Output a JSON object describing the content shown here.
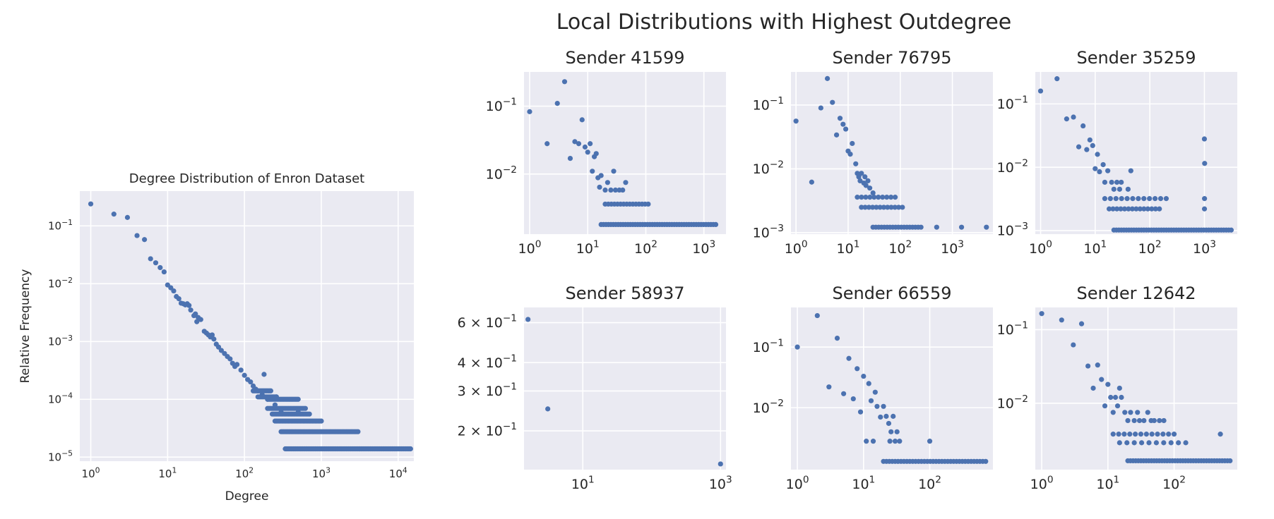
{
  "figure": {
    "suptitle": "Local Distributions with Highest Outdegree",
    "background": "#ffffff",
    "axes_facecolor": "#eaeaf2",
    "grid_color": "#ffffff",
    "marker_color": "#4c72b0"
  },
  "chart_data": [
    {
      "id": "main",
      "type": "scatter",
      "title": "Degree Distribution of Enron Dataset",
      "xlabel": "Degree",
      "ylabel": "Relative Frequency",
      "xscale": "log",
      "yscale": "log",
      "xlim": [
        0.72,
        16000
      ],
      "ylim": [
        8.5e-06,
        0.4
      ],
      "grid": true,
      "xticks": [
        {
          "base": "10",
          "exp": "0",
          "value": 1
        },
        {
          "base": "10",
          "exp": "1",
          "value": 10
        },
        {
          "base": "10",
          "exp": "2",
          "value": 100
        },
        {
          "base": "10",
          "exp": "3",
          "value": 1000
        },
        {
          "base": "10",
          "exp": "4",
          "value": 10000
        }
      ],
      "yticks": [
        {
          "base": "10",
          "exp": "−5",
          "value": 1e-05
        },
        {
          "base": "10",
          "exp": "−4",
          "value": 0.0001
        },
        {
          "base": "10",
          "exp": "−3",
          "value": 0.001
        },
        {
          "base": "10",
          "exp": "−2",
          "value": 0.01
        },
        {
          "base": "10",
          "exp": "−1",
          "value": 0.1
        }
      ],
      "points": [
        [
          1,
          0.24
        ],
        [
          2,
          0.16
        ],
        [
          3,
          0.14
        ],
        [
          4,
          0.068
        ],
        [
          5,
          0.058
        ],
        [
          6,
          0.027
        ],
        [
          7,
          0.023
        ],
        [
          8,
          0.019
        ],
        [
          9,
          0.016
        ],
        [
          10,
          0.0095
        ],
        [
          11,
          0.0085
        ],
        [
          12,
          0.0075
        ],
        [
          13,
          0.006
        ],
        [
          14,
          0.0055
        ],
        [
          15,
          0.0046
        ],
        [
          16,
          0.0045
        ],
        [
          17,
          0.0043
        ],
        [
          18,
          0.0045
        ],
        [
          19,
          0.0042
        ],
        [
          20,
          0.0035
        ],
        [
          22,
          0.0028
        ],
        [
          23,
          0.003
        ],
        [
          24,
          0.0022
        ],
        [
          25,
          0.0026
        ],
        [
          27,
          0.0024
        ],
        [
          30,
          0.0015
        ],
        [
          32,
          0.0014
        ],
        [
          34,
          0.0013
        ],
        [
          36,
          0.0012
        ],
        [
          38,
          0.0013
        ],
        [
          40,
          0.0011
        ],
        [
          43,
          0.0009
        ],
        [
          46,
          0.0008
        ],
        [
          50,
          0.0007
        ],
        [
          55,
          0.00062
        ],
        [
          60,
          0.00055
        ],
        [
          65,
          0.0005
        ],
        [
          70,
          0.00042
        ],
        [
          75,
          0.00037
        ],
        [
          80,
          0.0004
        ],
        [
          90,
          0.00032
        ],
        [
          100,
          0.00026
        ],
        [
          110,
          0.00022
        ],
        [
          120,
          0.0002
        ],
        [
          130,
          0.00017
        ],
        [
          140,
          0.00015
        ],
        [
          150,
          0.00014
        ],
        [
          170,
          0.00012
        ],
        [
          200,
          0.0001
        ],
        [
          250,
          8e-05
        ],
        [
          300,
          6e-05
        ],
        [
          180,
          0.00027
        ],
        [
          260,
          0.00011
        ],
        [
          500,
          6e-05
        ]
      ],
      "bands": [
        {
          "y": 0.00014,
          "from": 130,
          "to": 220,
          "count": 14
        },
        {
          "y": 0.00011,
          "from": 150,
          "to": 260,
          "count": 14
        },
        {
          "y": 0.0001,
          "from": 200,
          "to": 500,
          "count": 24
        },
        {
          "y": 6.95e-05,
          "from": 200,
          "to": 620,
          "count": 26
        },
        {
          "y": 5.55e-05,
          "from": 230,
          "to": 700,
          "count": 26
        },
        {
          "y": 4.2e-05,
          "from": 250,
          "to": 1000,
          "count": 32
        },
        {
          "y": 2.75e-05,
          "from": 300,
          "to": 3000,
          "count": 60
        },
        {
          "y": 1.39e-05,
          "from": 340,
          "to": 14500,
          "count": 110
        }
      ]
    },
    {
      "id": "s41599",
      "type": "scatter",
      "title": "Sender 41599",
      "xscale": "log",
      "yscale": "log",
      "xlim": [
        0.8,
        2400
      ],
      "ylim": [
        0.0013,
        0.32
      ],
      "grid": true,
      "xticks": [
        {
          "base": "10",
          "exp": "0",
          "value": 1
        },
        {
          "base": "10",
          "exp": "1",
          "value": 10
        },
        {
          "base": "10",
          "exp": "2",
          "value": 100
        },
        {
          "base": "10",
          "exp": "3",
          "value": 1000
        }
      ],
      "yticks": [
        {
          "base": "10",
          "exp": "−2",
          "value": 0.01
        },
        {
          "base": "10",
          "exp": "−1",
          "value": 0.1
        }
      ],
      "points": [
        [
          1,
          0.083
        ],
        [
          2,
          0.028
        ],
        [
          3,
          0.11
        ],
        [
          4,
          0.23
        ],
        [
          5,
          0.017
        ],
        [
          6,
          0.03
        ],
        [
          7,
          0.028
        ],
        [
          8,
          0.063
        ],
        [
          9,
          0.025
        ],
        [
          10,
          0.021
        ],
        [
          11,
          0.028
        ],
        [
          12,
          0.011
        ],
        [
          13,
          0.018
        ],
        [
          14,
          0.02
        ],
        [
          15,
          0.0088
        ],
        [
          16,
          0.0064
        ],
        [
          17,
          0.0095
        ],
        [
          20,
          0.0058
        ],
        [
          22,
          0.0075
        ],
        [
          25,
          0.0058
        ],
        [
          28,
          0.011
        ],
        [
          30,
          0.0058
        ],
        [
          35,
          0.0058
        ],
        [
          40,
          0.0058
        ],
        [
          45,
          0.0075
        ]
      ],
      "bands": [
        {
          "y": 0.0036,
          "from": 20,
          "to": 110,
          "count": 15
        },
        {
          "y": 0.0018,
          "from": 17,
          "to": 1600,
          "count": 48
        }
      ]
    },
    {
      "id": "s76795",
      "type": "scatter",
      "title": "Sender 76795",
      "xscale": "log",
      "yscale": "log",
      "xlim": [
        0.8,
        6000
      ],
      "ylim": [
        0.00095,
        0.33
      ],
      "grid": true,
      "xticks": [
        {
          "base": "10",
          "exp": "0",
          "value": 1
        },
        {
          "base": "10",
          "exp": "1",
          "value": 10
        },
        {
          "base": "10",
          "exp": "2",
          "value": 100
        },
        {
          "base": "10",
          "exp": "3",
          "value": 1000
        }
      ],
      "yticks": [
        {
          "base": "10",
          "exp": "−3",
          "value": 0.001
        },
        {
          "base": "10",
          "exp": "−2",
          "value": 0.01
        },
        {
          "base": "10",
          "exp": "−1",
          "value": 0.1
        }
      ],
      "points": [
        [
          1,
          0.056
        ],
        [
          2,
          0.0062
        ],
        [
          3,
          0.09
        ],
        [
          4,
          0.26
        ],
        [
          5,
          0.11
        ],
        [
          6,
          0.034
        ],
        [
          7,
          0.062
        ],
        [
          8,
          0.05
        ],
        [
          9,
          0.042
        ],
        [
          10,
          0.019
        ],
        [
          11,
          0.017
        ],
        [
          12,
          0.025
        ],
        [
          14,
          0.012
        ],
        [
          15,
          0.0085
        ],
        [
          16,
          0.0075
        ],
        [
          17,
          0.0065
        ],
        [
          18,
          0.0085
        ],
        [
          20,
          0.006
        ],
        [
          21,
          0.0075
        ],
        [
          22,
          0.0055
        ],
        [
          24,
          0.0065
        ],
        [
          26,
          0.005
        ],
        [
          30,
          0.0042
        ],
        [
          500,
          0.00122
        ],
        [
          1500,
          0.00122
        ],
        [
          4500,
          0.00122
        ]
      ],
      "bands": [
        {
          "y": 0.0036,
          "from": 15,
          "to": 80,
          "count": 10
        },
        {
          "y": 0.0025,
          "from": 18,
          "to": 110,
          "count": 12
        },
        {
          "y": 0.00122,
          "from": 30,
          "to": 250,
          "count": 18
        }
      ]
    },
    {
      "id": "s35259",
      "type": "scatter",
      "title": "Sender 35259",
      "xscale": "log",
      "yscale": "log",
      "xlim": [
        0.8,
        4000
      ],
      "ylim": [
        0.00088,
        0.32
      ],
      "grid": true,
      "xticks": [
        {
          "base": "10",
          "exp": "0",
          "value": 1
        },
        {
          "base": "10",
          "exp": "1",
          "value": 10
        },
        {
          "base": "10",
          "exp": "2",
          "value": 100
        },
        {
          "base": "10",
          "exp": "3",
          "value": 1000
        }
      ],
      "yticks": [
        {
          "base": "10",
          "exp": "−3",
          "value": 0.001
        },
        {
          "base": "10",
          "exp": "−2",
          "value": 0.01
        },
        {
          "base": "10",
          "exp": "−1",
          "value": 0.1
        }
      ],
      "points": [
        [
          1,
          0.16
        ],
        [
          2,
          0.25
        ],
        [
          3,
          0.058
        ],
        [
          4,
          0.062
        ],
        [
          5,
          0.021
        ],
        [
          6,
          0.045
        ],
        [
          7,
          0.019
        ],
        [
          8,
          0.027
        ],
        [
          9,
          0.022
        ],
        [
          10,
          0.0095
        ],
        [
          11,
          0.016
        ],
        [
          12,
          0.0085
        ],
        [
          14,
          0.011
        ],
        [
          15,
          0.0058
        ],
        [
          17,
          0.0088
        ],
        [
          20,
          0.0058
        ],
        [
          22,
          0.0045
        ],
        [
          25,
          0.0058
        ],
        [
          28,
          0.0045
        ],
        [
          30,
          0.0058
        ],
        [
          40,
          0.0045
        ],
        [
          45,
          0.0088
        ],
        [
          1000,
          0.028
        ],
        [
          1010,
          0.0115
        ],
        [
          1005,
          0.0032
        ],
        [
          1003,
          0.0022
        ]
      ],
      "bands": [
        {
          "y": 0.0032,
          "from": 15,
          "to": 200,
          "count": 12
        },
        {
          "y": 0.0022,
          "from": 18,
          "to": 150,
          "count": 14
        },
        {
          "y": 0.00102,
          "from": 22,
          "to": 3100,
          "count": 48
        }
      ]
    },
    {
      "id": "s58937",
      "type": "scatter",
      "title": "Sender 58937",
      "xscale": "log",
      "yscale": "log",
      "xlim": [
        1.4,
        1200
      ],
      "ylim": [
        0.135,
        0.7
      ],
      "grid": true,
      "xticks": [
        {
          "base": "10",
          "exp": "1",
          "value": 10
        },
        {
          "base": "10",
          "exp": "3",
          "value": 1000
        }
      ],
      "yticks": [
        {
          "prefix": "2 × ",
          "base": "10",
          "exp": "−1",
          "value": 0.2
        },
        {
          "prefix": "3 × ",
          "base": "10",
          "exp": "−1",
          "value": 0.3
        },
        {
          "prefix": "4 × ",
          "base": "10",
          "exp": "−1",
          "value": 0.4
        },
        {
          "prefix": "6 × ",
          "base": "10",
          "exp": "−1",
          "value": 0.6
        }
      ],
      "points": [
        [
          1.6,
          0.62
        ],
        [
          3.1,
          0.25
        ],
        [
          1000,
          0.143
        ]
      ],
      "bands": []
    },
    {
      "id": "s66559",
      "type": "scatter",
      "title": "Sender 66559",
      "xscale": "log",
      "yscale": "log",
      "xlim": [
        0.8,
        900
      ],
      "ylim": [
        0.00095,
        0.45
      ],
      "grid": true,
      "xticks": [
        {
          "base": "10",
          "exp": "0",
          "value": 1
        },
        {
          "base": "10",
          "exp": "1",
          "value": 10
        },
        {
          "base": "10",
          "exp": "2",
          "value": 100
        }
      ],
      "yticks": [
        {
          "base": "10",
          "exp": "−2",
          "value": 0.01
        },
        {
          "base": "10",
          "exp": "−1",
          "value": 0.1
        }
      ],
      "points": [
        [
          1,
          0.1
        ],
        [
          2,
          0.33
        ],
        [
          3,
          0.022
        ],
        [
          4,
          0.14
        ],
        [
          5,
          0.017
        ],
        [
          6,
          0.065
        ],
        [
          7,
          0.014
        ],
        [
          8,
          0.044
        ],
        [
          9,
          0.0085
        ],
        [
          10,
          0.033
        ],
        [
          11,
          0.0028
        ],
        [
          12,
          0.025
        ],
        [
          13,
          0.013
        ],
        [
          14,
          0.0028
        ],
        [
          15,
          0.018
        ],
        [
          16,
          0.0105
        ],
        [
          18,
          0.007
        ],
        [
          20,
          0.0105
        ],
        [
          22,
          0.0072
        ],
        [
          24,
          0.0055
        ],
        [
          25,
          0.0028
        ],
        [
          26,
          0.004
        ],
        [
          28,
          0.0072
        ],
        [
          30,
          0.0028
        ],
        [
          32,
          0.004
        ],
        [
          35,
          0.0028
        ],
        [
          100,
          0.0028
        ]
      ],
      "bands": [
        {
          "y": 0.0013,
          "from": 20,
          "to": 700,
          "count": 36
        }
      ]
    },
    {
      "id": "s12642",
      "type": "scatter",
      "title": "Sender 12642",
      "xscale": "log",
      "yscale": "log",
      "xlim": [
        0.8,
        900
      ],
      "ylim": [
        0.00125,
        0.2
      ],
      "grid": true,
      "xticks": [
        {
          "base": "10",
          "exp": "0",
          "value": 1
        },
        {
          "base": "10",
          "exp": "1",
          "value": 10
        },
        {
          "base": "10",
          "exp": "2",
          "value": 100
        }
      ],
      "yticks": [
        {
          "base": "10",
          "exp": "−2",
          "value": 0.01
        },
        {
          "base": "10",
          "exp": "−1",
          "value": 0.1
        }
      ],
      "points": [
        [
          1,
          0.165
        ],
        [
          2,
          0.135
        ],
        [
          3,
          0.062
        ],
        [
          4,
          0.12
        ],
        [
          5,
          0.032
        ],
        [
          6,
          0.016
        ],
        [
          7,
          0.033
        ],
        [
          8,
          0.021
        ],
        [
          9,
          0.0092
        ],
        [
          10,
          0.018
        ],
        [
          11,
          0.012
        ],
        [
          12,
          0.0075
        ],
        [
          13,
          0.012
        ],
        [
          14,
          0.0092
        ],
        [
          15,
          0.016
        ],
        [
          16,
          0.012
        ],
        [
          18,
          0.0075
        ],
        [
          20,
          0.0058
        ],
        [
          22,
          0.0075
        ],
        [
          25,
          0.0058
        ],
        [
          28,
          0.0075
        ],
        [
          30,
          0.0058
        ],
        [
          35,
          0.0058
        ],
        [
          40,
          0.0075
        ],
        [
          45,
          0.0058
        ],
        [
          50,
          0.0058
        ],
        [
          60,
          0.0058
        ],
        [
          70,
          0.0058
        ],
        [
          500,
          0.0038
        ]
      ],
      "bands": [
        {
          "y": 0.0038,
          "from": 12,
          "to": 100,
          "count": 12
        },
        {
          "y": 0.0029,
          "from": 15,
          "to": 150,
          "count": 10
        },
        {
          "y": 0.00165,
          "from": 20,
          "to": 700,
          "count": 40
        }
      ]
    }
  ]
}
